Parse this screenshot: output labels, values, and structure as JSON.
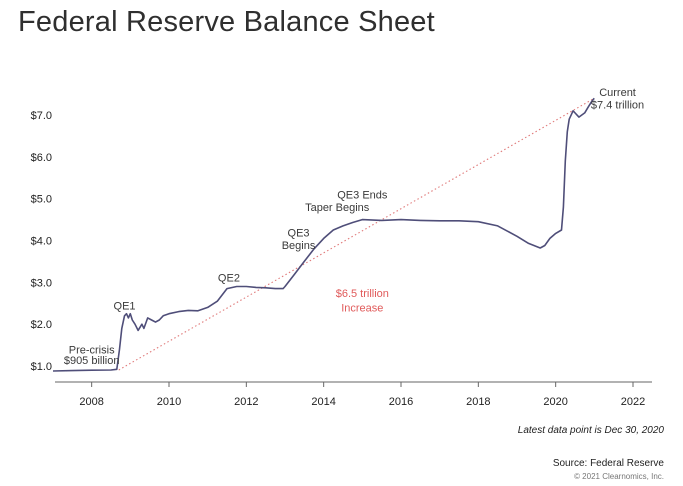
{
  "title": "Federal Reserve Balance Sheet",
  "footer": {
    "note": "Latest data point is Dec 30, 2020",
    "source": "Source: Federal Reserve",
    "copyright": "© 2021 Clearnomics, Inc."
  },
  "chart_data": {
    "type": "line",
    "title": "Federal Reserve Balance Sheet",
    "xlabel": "",
    "ylabel": "",
    "xlim": [
      2007.0,
      2023.0
    ],
    "ylim": [
      0.85,
      7.6
    ],
    "y_ticks": [
      1.0,
      2.0,
      3.0,
      4.0,
      5.0,
      6.0,
      7.0
    ],
    "y_tick_labels": [
      "$1.0",
      "$2.0",
      "$3.0",
      "$4.0",
      "$5.0",
      "$6.0",
      "$7.0"
    ],
    "x_ticks": [
      2008,
      2010,
      2012,
      2014,
      2016,
      2018,
      2020,
      2022
    ],
    "x_tick_labels": [
      "2008",
      "2010",
      "2012",
      "2014",
      "2016",
      "2018",
      "2020",
      "2022"
    ],
    "grid": false,
    "colors": {
      "line": "#4f4e79",
      "trend": "#e07a7a",
      "axis": "#666666",
      "annotation": "#3a3a3a",
      "increase": "#e05a5a"
    },
    "series": [
      {
        "points": [
          [
            2007.0,
            0.88
          ],
          [
            2007.5,
            0.89
          ],
          [
            2008.0,
            0.9
          ],
          [
            2008.5,
            0.905
          ],
          [
            2008.65,
            0.92
          ],
          [
            2008.72,
            1.4
          ],
          [
            2008.78,
            1.9
          ],
          [
            2008.85,
            2.2
          ],
          [
            2008.9,
            2.25
          ],
          [
            2008.95,
            2.15
          ],
          [
            2009.0,
            2.25
          ],
          [
            2009.05,
            2.1
          ],
          [
            2009.12,
            2.0
          ],
          [
            2009.2,
            1.85
          ],
          [
            2009.3,
            2.0
          ],
          [
            2009.35,
            1.9
          ],
          [
            2009.45,
            2.15
          ],
          [
            2009.55,
            2.1
          ],
          [
            2009.65,
            2.05
          ],
          [
            2009.75,
            2.1
          ],
          [
            2009.85,
            2.2
          ],
          [
            2010.0,
            2.25
          ],
          [
            2010.25,
            2.3
          ],
          [
            2010.5,
            2.33
          ],
          [
            2010.75,
            2.32
          ],
          [
            2011.0,
            2.4
          ],
          [
            2011.25,
            2.55
          ],
          [
            2011.5,
            2.85
          ],
          [
            2011.75,
            2.9
          ],
          [
            2012.0,
            2.9
          ],
          [
            2012.25,
            2.88
          ],
          [
            2012.5,
            2.87
          ],
          [
            2012.75,
            2.85
          ],
          [
            2012.95,
            2.85
          ],
          [
            2013.0,
            2.9
          ],
          [
            2013.25,
            3.2
          ],
          [
            2013.5,
            3.5
          ],
          [
            2013.75,
            3.8
          ],
          [
            2014.0,
            4.05
          ],
          [
            2014.25,
            4.25
          ],
          [
            2014.5,
            4.35
          ],
          [
            2014.75,
            4.43
          ],
          [
            2015.0,
            4.5
          ],
          [
            2015.5,
            4.48
          ],
          [
            2016.0,
            4.5
          ],
          [
            2016.5,
            4.48
          ],
          [
            2017.0,
            4.47
          ],
          [
            2017.5,
            4.47
          ],
          [
            2018.0,
            4.45
          ],
          [
            2018.5,
            4.35
          ],
          [
            2019.0,
            4.1
          ],
          [
            2019.3,
            3.93
          ],
          [
            2019.6,
            3.82
          ],
          [
            2019.72,
            3.88
          ],
          [
            2019.85,
            4.05
          ],
          [
            2020.0,
            4.17
          ],
          [
            2020.15,
            4.25
          ],
          [
            2020.2,
            4.8
          ],
          [
            2020.25,
            5.9
          ],
          [
            2020.3,
            6.6
          ],
          [
            2020.35,
            6.9
          ],
          [
            2020.45,
            7.1
          ],
          [
            2020.5,
            7.05
          ],
          [
            2020.6,
            6.95
          ],
          [
            2020.75,
            7.05
          ],
          [
            2020.85,
            7.2
          ],
          [
            2020.95,
            7.35
          ],
          [
            2021.0,
            7.4
          ]
        ]
      }
    ],
    "trend_line": [
      [
        2008.7,
        0.905
      ],
      [
        2021.0,
        7.4
      ]
    ],
    "annotations": [
      {
        "text": "Pre-crisis",
        "x": 2008.0,
        "y": 1.3
      },
      {
        "text": "$905 billion",
        "x": 2008.0,
        "y": 1.05
      },
      {
        "text": "QE1",
        "x": 2008.85,
        "y": 2.35
      },
      {
        "text": "QE2",
        "x": 2011.55,
        "y": 3.02
      },
      {
        "text": "QE3",
        "x": 2013.35,
        "y": 4.1
      },
      {
        "text": "Begins",
        "x": 2013.35,
        "y": 3.8
      },
      {
        "text": "Taper Begins",
        "x": 2014.35,
        "y": 4.7
      },
      {
        "text": "QE3 Ends",
        "x": 2015.0,
        "y": 5.0
      },
      {
        "text": "$6.5 trillion",
        "x": 2015.0,
        "y": 2.65
      },
      {
        "text": "Increase",
        "x": 2015.0,
        "y": 2.3
      },
      {
        "text": "Current",
        "x": 2021.6,
        "y": 7.45
      },
      {
        "text": "$7.4 trillion",
        "x": 2021.6,
        "y": 7.15
      }
    ]
  }
}
